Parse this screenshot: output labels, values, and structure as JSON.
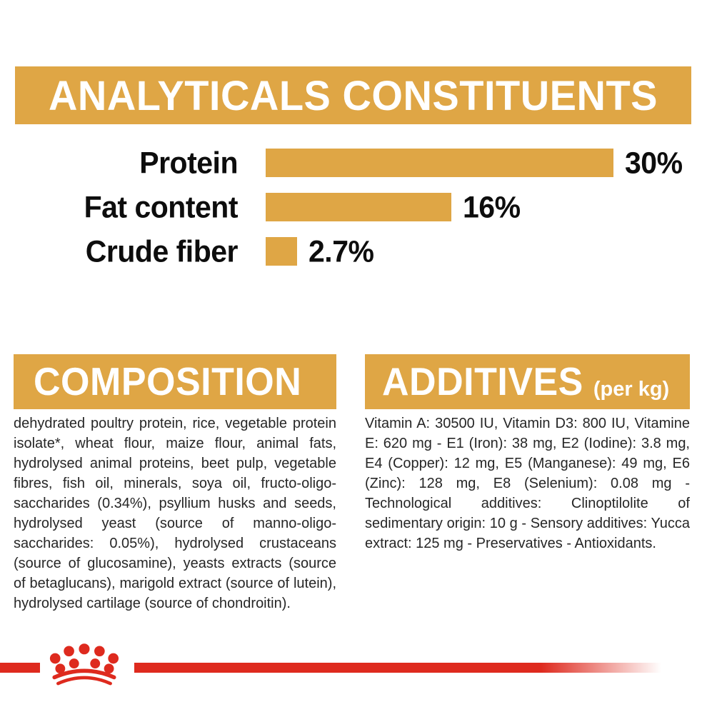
{
  "colors": {
    "gold": "#DFA645",
    "red": "#DE2A1E",
    "text_dark": "#262626",
    "chart_text": "#0d0d0d",
    "banner_text": "#ffffff",
    "background": "#ffffff"
  },
  "analyticals": {
    "title": "ANALYTICALS CONSTITUENTS"
  },
  "chart_data": {
    "type": "bar",
    "title": "ANALYTICALS CONSTITUENTS",
    "categories": [
      "Protein",
      "Fat content",
      "Crude fiber"
    ],
    "values": [
      30,
      16,
      2.7
    ],
    "value_labels": [
      "30%",
      "16%",
      "2.7%"
    ],
    "xlabel": "",
    "ylabel": "",
    "xlim": [
      0,
      30
    ],
    "orientation": "horizontal",
    "grid": false,
    "legend": false,
    "bar_color": "#DFA645"
  },
  "composition": {
    "title": "COMPOSITION",
    "body": "dehydrated poultry protein, rice, vegetable protein isolate*, wheat flour, maize flour, animal fats, hydrolysed animal proteins, beet pulp, vegetable fibres, fish oil, minerals, soya oil, fructo-oligo-saccharides (0.34%), psyllium husks and seeds, hydrolysed yeast (source of manno-oligo-saccharides: 0.05%), hydrolysed crustaceans (source of glucosamine), yeasts extracts (source of betaglucans), marigold extract (source of lutein), hydrolysed cartilage (source of chondroitin)."
  },
  "additives": {
    "title": "ADDITIVES",
    "title_suffix": "(per kg)",
    "body": "Vitamin A: 30500 IU, Vitamin D3: 800 IU, Vitamine E: 620 mg - E1 (Iron): 38 mg, E2 (Iodine): 3.8 mg, E4 (Copper): 12 mg, E5 (Manganese): 49 mg, E6 (Zinc): 128 mg, E8 (Selenium): 0.08 mg - Technological additives: Clinoptilolite of sedimentary origin: 10 g - Sensory additives: Yucca extract: 125 mg - Preservatives - Antioxidants."
  },
  "footer": {
    "logo": "royal-canin-crown"
  }
}
